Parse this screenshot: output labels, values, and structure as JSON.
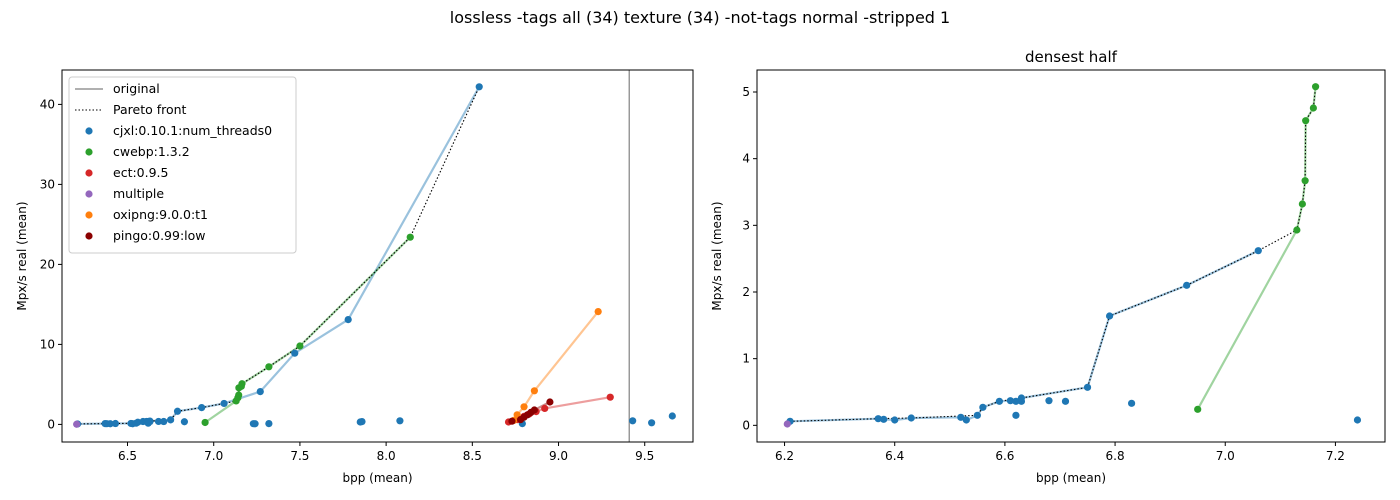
{
  "title": "lossless -tags all (34) texture (34) -not-tags normal -stripped 1",
  "colors": {
    "original": "#808080",
    "cjxl": "#1f77b4",
    "cwebp": "#2ca02c",
    "ect": "#d62728",
    "multiple": "#9467bd",
    "oxipng": "#ff7f0e",
    "pingo": "#8b0000"
  },
  "chart_data": [
    {
      "type": "scatter",
      "title": "",
      "xlabel": "bpp (mean)",
      "ylabel": "Mpx/s real (mean)",
      "xlim": [
        6.12,
        9.78
      ],
      "ylim": [
        -2.2,
        44.3
      ],
      "xticks": [
        "6.5",
        "7.0",
        "7.5",
        "8.0",
        "8.5",
        "9.0",
        "9.5"
      ],
      "yticks": [
        "0",
        "10",
        "20",
        "30",
        "40"
      ],
      "legend": {
        "placement": "upper-left",
        "entries": [
          {
            "label": "original",
            "style": "line",
            "color": "#808080"
          },
          {
            "label": "Pareto front",
            "style": "dotted",
            "color": "#000000"
          },
          {
            "label": "cjxl:0.10.1:num_threads0",
            "style": "dot",
            "color": "#1f77b4"
          },
          {
            "label": "cwebp:1.3.2",
            "style": "dot",
            "color": "#2ca02c"
          },
          {
            "label": "ect:0.9.5",
            "style": "dot",
            "color": "#d62728"
          },
          {
            "label": "multiple",
            "style": "dot",
            "color": "#9467bd"
          },
          {
            "label": "oxipng:9.0.0:t1",
            "style": "dot",
            "color": "#ff7f0e"
          },
          {
            "label": "pingo:0.99:low",
            "style": "dot",
            "color": "#8b0000"
          }
        ]
      },
      "original_x": 9.41,
      "series": [
        {
          "name": "cjxl:0.10.1:num_threads0",
          "color": "#1f77b4",
          "front": [
            [
              6.21,
              0.06
            ],
            [
              6.37,
              0.1
            ],
            [
              6.38,
              0.09
            ],
            [
              6.4,
              0.08
            ],
            [
              6.43,
              0.11
            ],
            [
              6.52,
              0.12
            ],
            [
              6.53,
              0.08
            ],
            [
              6.55,
              0.15
            ],
            [
              6.56,
              0.27
            ],
            [
              6.59,
              0.36
            ],
            [
              6.61,
              0.37
            ],
            [
              6.62,
              0.36
            ],
            [
              6.63,
              0.36
            ],
            [
              6.63,
              0.41
            ],
            [
              6.75,
              0.57
            ],
            [
              6.79,
              1.64
            ],
            [
              6.93,
              2.1
            ],
            [
              7.06,
              2.62
            ],
            [
              7.27,
              4.1
            ],
            [
              7.47,
              8.9
            ],
            [
              7.78,
              13.1
            ],
            [
              8.54,
              42.2
            ]
          ],
          "extra": [
            [
              6.62,
              0.15
            ],
            [
              6.68,
              0.37
            ],
            [
              6.71,
              0.36
            ],
            [
              6.83,
              0.33
            ],
            [
              7.23,
              0.09
            ],
            [
              7.24,
              0.08
            ],
            [
              7.32,
              0.1
            ],
            [
              7.85,
              0.3
            ],
            [
              7.86,
              0.35
            ],
            [
              8.08,
              0.45
            ],
            [
              8.79,
              0.1
            ],
            [
              9.43,
              0.45
            ],
            [
              9.54,
              0.2
            ],
            [
              9.66,
              1.05
            ]
          ]
        },
        {
          "name": "cwebp:1.3.2",
          "color": "#2ca02c",
          "points": [
            [
              6.95,
              0.24
            ],
            [
              7.13,
              2.93
            ],
            [
              7.14,
              3.32
            ],
            [
              7.145,
              3.67
            ],
            [
              7.146,
              4.57
            ],
            [
              7.16,
              4.76
            ],
            [
              7.164,
              5.08
            ],
            [
              7.32,
              7.2
            ],
            [
              7.5,
              9.8
            ],
            [
              8.14,
              23.4
            ]
          ]
        },
        {
          "name": "ect:0.9.5",
          "color": "#d62728",
          "points": [
            [
              8.71,
              0.3
            ],
            [
              8.76,
              0.6
            ],
            [
              8.8,
              1.0
            ],
            [
              8.83,
              1.3
            ],
            [
              8.87,
              1.6
            ],
            [
              8.92,
              2.0
            ],
            [
              9.3,
              3.4
            ]
          ]
        },
        {
          "name": "multiple",
          "color": "#9467bd",
          "points": [
            [
              6.205,
              0.02
            ]
          ]
        },
        {
          "name": "oxipng:9.0.0:t1",
          "color": "#ff7f0e",
          "points": [
            [
              8.74,
              0.5
            ],
            [
              8.76,
              1.2
            ],
            [
              8.8,
              2.2
            ],
            [
              8.86,
              4.2
            ],
            [
              9.23,
              14.1
            ]
          ]
        },
        {
          "name": "pingo:0.99:low",
          "color": "#8b0000",
          "points": [
            [
              8.73,
              0.4
            ],
            [
              8.78,
              0.6
            ],
            [
              8.8,
              0.9
            ],
            [
              8.82,
              1.2
            ],
            [
              8.84,
              1.5
            ],
            [
              8.86,
              1.8
            ],
            [
              8.95,
              2.8
            ]
          ]
        }
      ],
      "pareto_front": [
        [
          6.205,
          0.02
        ],
        [
          6.21,
          0.06
        ],
        [
          6.37,
          0.1
        ],
        [
          6.43,
          0.11
        ],
        [
          6.55,
          0.15
        ],
        [
          6.56,
          0.27
        ],
        [
          6.59,
          0.36
        ],
        [
          6.63,
          0.41
        ],
        [
          6.75,
          0.57
        ],
        [
          6.79,
          1.64
        ],
        [
          6.93,
          2.1
        ],
        [
          7.06,
          2.62
        ],
        [
          7.13,
          2.93
        ],
        [
          7.14,
          3.32
        ],
        [
          7.145,
          3.67
        ],
        [
          7.146,
          4.57
        ],
        [
          7.16,
          4.76
        ],
        [
          7.164,
          5.08
        ],
        [
          7.32,
          7.2
        ],
        [
          7.5,
          9.8
        ],
        [
          8.14,
          23.4
        ],
        [
          8.54,
          42.2
        ]
      ]
    },
    {
      "type": "scatter",
      "title": "densest half",
      "xlabel": "bpp (mean)",
      "ylabel": "Mpx/s real (mean)",
      "xlim": [
        6.15,
        7.29
      ],
      "ylim": [
        -0.25,
        5.33
      ],
      "xticks": [
        "6.2",
        "6.4",
        "6.6",
        "6.8",
        "7.0",
        "7.2"
      ],
      "yticks": [
        "0",
        "1",
        "2",
        "3",
        "4",
        "5"
      ],
      "series": [
        {
          "name": "cjxl:0.10.1:num_threads0",
          "color": "#1f77b4",
          "front": [
            [
              6.21,
              0.06
            ],
            [
              6.37,
              0.1
            ],
            [
              6.38,
              0.09
            ],
            [
              6.4,
              0.08
            ],
            [
              6.43,
              0.11
            ],
            [
              6.52,
              0.12
            ],
            [
              6.53,
              0.08
            ],
            [
              6.55,
              0.15
            ],
            [
              6.56,
              0.27
            ],
            [
              6.59,
              0.36
            ],
            [
              6.61,
              0.37
            ],
            [
              6.62,
              0.36
            ],
            [
              6.63,
              0.36
            ],
            [
              6.63,
              0.41
            ],
            [
              6.75,
              0.57
            ],
            [
              6.79,
              1.64
            ],
            [
              6.93,
              2.1
            ],
            [
              7.06,
              2.62
            ]
          ],
          "extra": [
            [
              6.62,
              0.15
            ],
            [
              6.68,
              0.37
            ],
            [
              6.71,
              0.36
            ],
            [
              6.83,
              0.33
            ],
            [
              7.24,
              0.08
            ]
          ]
        },
        {
          "name": "cwebp:1.3.2",
          "color": "#2ca02c",
          "points": [
            [
              6.95,
              0.24
            ],
            [
              7.13,
              2.93
            ],
            [
              7.14,
              3.32
            ],
            [
              7.145,
              3.67
            ],
            [
              7.146,
              4.57
            ],
            [
              7.16,
              4.76
            ],
            [
              7.164,
              5.08
            ]
          ]
        },
        {
          "name": "multiple",
          "color": "#9467bd",
          "points": [
            [
              6.205,
              0.02
            ]
          ]
        }
      ],
      "pareto_front": [
        [
          6.205,
          0.02
        ],
        [
          6.21,
          0.06
        ],
        [
          6.37,
          0.1
        ],
        [
          6.43,
          0.11
        ],
        [
          6.55,
          0.15
        ],
        [
          6.56,
          0.27
        ],
        [
          6.59,
          0.36
        ],
        [
          6.63,
          0.41
        ],
        [
          6.75,
          0.57
        ],
        [
          6.79,
          1.64
        ],
        [
          6.93,
          2.1
        ],
        [
          7.06,
          2.62
        ],
        [
          7.13,
          2.93
        ],
        [
          7.14,
          3.32
        ],
        [
          7.145,
          3.67
        ],
        [
          7.146,
          4.57
        ],
        [
          7.16,
          4.76
        ],
        [
          7.164,
          5.08
        ]
      ]
    }
  ]
}
